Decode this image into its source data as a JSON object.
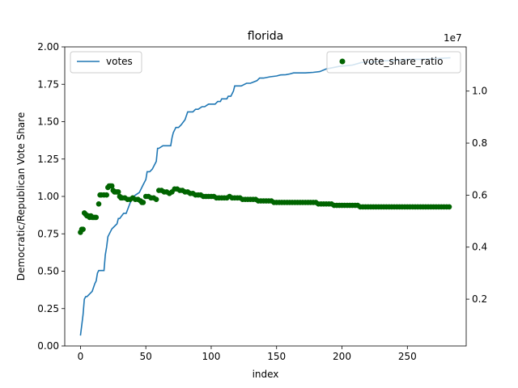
{
  "chart_data": {
    "type": "line+scatter",
    "title": "florida",
    "xlabel": "index",
    "ylabel_left": "Democratic/Republican Vote Share",
    "ylabel_right": "",
    "right_axis_multiplier": "1e7",
    "xlim": [
      -12,
      295
    ],
    "ylim_left": [
      0,
      2.0
    ],
    "ylim_right": [
      0.02,
      1.17
    ],
    "x_ticks": [
      "0",
      "50",
      "100",
      "150",
      "200",
      "250"
    ],
    "y_left_ticks": [
      "0.00",
      "0.25",
      "0.50",
      "0.75",
      "1.00",
      "1.25",
      "1.50",
      "1.75",
      "2.00"
    ],
    "y_right_ticks": [
      "0.2",
      "0.4",
      "0.6",
      "0.8",
      "1.0"
    ],
    "colors": {
      "votes": "#1f77b4",
      "ratio": "#006400"
    },
    "legend_left": {
      "label": "votes",
      "placement": "upper left"
    },
    "legend_right": {
      "label": "vote_share_ratio",
      "placement": "upper right"
    },
    "votes_series": {
      "name": "votes",
      "axis": "right (1e7)",
      "points": [
        [
          0,
          0.06
        ],
        [
          1,
          0.1
        ],
        [
          2,
          0.14
        ],
        [
          3,
          0.2
        ],
        [
          4,
          0.21
        ],
        [
          5,
          0.21
        ],
        [
          7,
          0.22
        ],
        [
          9,
          0.23
        ],
        [
          11,
          0.26
        ],
        [
          12,
          0.27
        ],
        [
          13,
          0.3
        ],
        [
          14,
          0.31
        ],
        [
          15,
          0.31
        ],
        [
          18,
          0.31
        ],
        [
          19,
          0.37
        ],
        [
          20,
          0.4
        ],
        [
          21,
          0.44
        ],
        [
          22,
          0.45
        ],
        [
          24,
          0.47
        ],
        [
          26,
          0.48
        ],
        [
          28,
          0.49
        ],
        [
          29,
          0.51
        ],
        [
          30,
          0.51
        ],
        [
          33,
          0.53
        ],
        [
          35,
          0.53
        ],
        [
          38,
          0.57
        ],
        [
          40,
          0.59
        ],
        [
          42,
          0.6
        ],
        [
          45,
          0.61
        ],
        [
          48,
          0.64
        ],
        [
          50,
          0.66
        ],
        [
          51,
          0.69
        ],
        [
          53,
          0.69
        ],
        [
          55,
          0.7
        ],
        [
          57,
          0.72
        ],
        [
          58,
          0.73
        ],
        [
          59,
          0.78
        ],
        [
          60,
          0.78
        ],
        [
          63,
          0.79
        ],
        [
          66,
          0.79
        ],
        [
          69,
          0.79
        ],
        [
          70,
          0.82
        ],
        [
          71,
          0.84
        ],
        [
          73,
          0.86
        ],
        [
          75,
          0.86
        ],
        [
          77,
          0.87
        ],
        [
          80,
          0.89
        ],
        [
          82,
          0.92
        ],
        [
          84,
          0.92
        ],
        [
          86,
          0.92
        ],
        [
          88,
          0.93
        ],
        [
          90,
          0.93
        ],
        [
          93,
          0.94
        ],
        [
          95,
          0.94
        ],
        [
          98,
          0.95
        ],
        [
          100,
          0.95
        ],
        [
          103,
          0.95
        ],
        [
          105,
          0.96
        ],
        [
          107,
          0.96
        ],
        [
          108,
          0.97
        ],
        [
          110,
          0.97
        ],
        [
          112,
          0.97
        ],
        [
          113,
          0.98
        ],
        [
          115,
          0.98
        ],
        [
          117,
          1.0
        ],
        [
          118,
          1.02
        ],
        [
          120,
          1.02
        ],
        [
          123,
          1.02
        ],
        [
          127,
          1.03
        ],
        [
          130,
          1.03
        ],
        [
          135,
          1.04
        ],
        [
          137,
          1.05
        ],
        [
          140,
          1.05
        ],
        [
          145,
          1.055
        ],
        [
          150,
          1.058
        ],
        [
          153,
          1.062
        ],
        [
          157,
          1.063
        ],
        [
          160,
          1.066
        ],
        [
          163,
          1.07
        ],
        [
          167,
          1.07
        ],
        [
          172,
          1.07
        ],
        [
          178,
          1.072
        ],
        [
          183,
          1.075
        ],
        [
          188,
          1.085
        ],
        [
          193,
          1.09
        ],
        [
          198,
          1.095
        ],
        [
          204,
          1.098
        ],
        [
          208,
          1.1
        ],
        [
          215,
          1.11
        ],
        [
          222,
          1.112
        ],
        [
          230,
          1.116
        ],
        [
          240,
          1.118
        ],
        [
          250,
          1.122
        ],
        [
          260,
          1.122
        ],
        [
          268,
          1.124
        ],
        [
          275,
          1.126
        ],
        [
          283,
          1.128
        ]
      ]
    },
    "ratio_series": {
      "name": "vote_share_ratio",
      "axis": "left",
      "points": [
        [
          0,
          0.76
        ],
        [
          1,
          0.78
        ],
        [
          2,
          0.78
        ],
        [
          3,
          0.89
        ],
        [
          4,
          0.88
        ],
        [
          5,
          0.87
        ],
        [
          6,
          0.87
        ],
        [
          7,
          0.86
        ],
        [
          8,
          0.87
        ],
        [
          9,
          0.86
        ],
        [
          10,
          0.86
        ],
        [
          11,
          0.86
        ],
        [
          12,
          0.86
        ],
        [
          14,
          0.95
        ],
        [
          15,
          1.01
        ],
        [
          16,
          1.01
        ],
        [
          18,
          1.01
        ],
        [
          20,
          1.01
        ],
        [
          21,
          1.06
        ],
        [
          22,
          1.07
        ],
        [
          23,
          1.07
        ],
        [
          24,
          1.07
        ],
        [
          25,
          1.04
        ],
        [
          26,
          1.03
        ],
        [
          27,
          1.03
        ],
        [
          28,
          1.03
        ],
        [
          29,
          1.03
        ],
        [
          30,
          1.0
        ],
        [
          31,
          0.99
        ],
        [
          32,
          0.99
        ],
        [
          34,
          0.99
        ],
        [
          36,
          0.98
        ],
        [
          38,
          0.98
        ],
        [
          40,
          0.99
        ],
        [
          42,
          0.98
        ],
        [
          44,
          0.98
        ],
        [
          46,
          0.97
        ],
        [
          47,
          0.96
        ],
        [
          48,
          0.96
        ],
        [
          50,
          1.0
        ],
        [
          52,
          1.0
        ],
        [
          54,
          0.99
        ],
        [
          56,
          0.99
        ],
        [
          58,
          0.98
        ],
        [
          60,
          1.04
        ],
        [
          62,
          1.04
        ],
        [
          64,
          1.03
        ],
        [
          66,
          1.03
        ],
        [
          68,
          1.02
        ],
        [
          70,
          1.03
        ],
        [
          72,
          1.05
        ],
        [
          74,
          1.05
        ],
        [
          76,
          1.04
        ],
        [
          78,
          1.04
        ],
        [
          80,
          1.03
        ],
        [
          82,
          1.03
        ],
        [
          84,
          1.02
        ],
        [
          86,
          1.02
        ],
        [
          88,
          1.01
        ],
        [
          90,
          1.01
        ],
        [
          92,
          1.01
        ],
        [
          94,
          1.0
        ],
        [
          96,
          1.0
        ],
        [
          98,
          1.0
        ],
        [
          100,
          1.0
        ],
        [
          102,
          1.0
        ],
        [
          104,
          0.99
        ],
        [
          106,
          0.99
        ],
        [
          108,
          0.99
        ],
        [
          110,
          0.99
        ],
        [
          112,
          0.99
        ],
        [
          114,
          1.0
        ],
        [
          116,
          0.99
        ],
        [
          118,
          0.99
        ],
        [
          120,
          0.99
        ],
        [
          122,
          0.99
        ],
        [
          124,
          0.98
        ],
        [
          126,
          0.98
        ],
        [
          128,
          0.98
        ],
        [
          130,
          0.98
        ],
        [
          132,
          0.98
        ],
        [
          134,
          0.98
        ],
        [
          136,
          0.97
        ],
        [
          138,
          0.97
        ],
        [
          140,
          0.97
        ],
        [
          142,
          0.97
        ],
        [
          144,
          0.97
        ],
        [
          146,
          0.97
        ],
        [
          148,
          0.96
        ],
        [
          150,
          0.96
        ],
        [
          152,
          0.96
        ],
        [
          154,
          0.96
        ],
        [
          156,
          0.96
        ],
        [
          158,
          0.96
        ],
        [
          160,
          0.96
        ],
        [
          162,
          0.96
        ],
        [
          164,
          0.96
        ],
        [
          166,
          0.96
        ],
        [
          168,
          0.96
        ],
        [
          170,
          0.96
        ],
        [
          172,
          0.96
        ],
        [
          174,
          0.96
        ],
        [
          176,
          0.96
        ],
        [
          178,
          0.96
        ],
        [
          180,
          0.96
        ],
        [
          182,
          0.95
        ],
        [
          184,
          0.95
        ],
        [
          186,
          0.95
        ],
        [
          188,
          0.95
        ],
        [
          190,
          0.95
        ],
        [
          192,
          0.95
        ],
        [
          194,
          0.94
        ],
        [
          196,
          0.94
        ],
        [
          198,
          0.94
        ],
        [
          200,
          0.94
        ],
        [
          202,
          0.94
        ],
        [
          204,
          0.94
        ],
        [
          206,
          0.94
        ],
        [
          208,
          0.94
        ],
        [
          210,
          0.94
        ],
        [
          212,
          0.94
        ],
        [
          214,
          0.93
        ],
        [
          216,
          0.93
        ],
        [
          218,
          0.93
        ],
        [
          220,
          0.93
        ],
        [
          222,
          0.93
        ],
        [
          224,
          0.93
        ],
        [
          226,
          0.93
        ],
        [
          228,
          0.93
        ],
        [
          230,
          0.93
        ],
        [
          232,
          0.93
        ],
        [
          234,
          0.93
        ],
        [
          236,
          0.93
        ],
        [
          238,
          0.93
        ],
        [
          240,
          0.93
        ],
        [
          242,
          0.93
        ],
        [
          244,
          0.93
        ],
        [
          246,
          0.93
        ],
        [
          248,
          0.93
        ],
        [
          250,
          0.93
        ],
        [
          252,
          0.93
        ],
        [
          254,
          0.93
        ],
        [
          256,
          0.93
        ],
        [
          258,
          0.93
        ],
        [
          260,
          0.93
        ],
        [
          262,
          0.93
        ],
        [
          264,
          0.93
        ],
        [
          266,
          0.93
        ],
        [
          268,
          0.93
        ],
        [
          270,
          0.93
        ],
        [
          272,
          0.93
        ],
        [
          274,
          0.93
        ],
        [
          276,
          0.93
        ],
        [
          278,
          0.93
        ],
        [
          280,
          0.93
        ],
        [
          282,
          0.93
        ]
      ]
    }
  }
}
